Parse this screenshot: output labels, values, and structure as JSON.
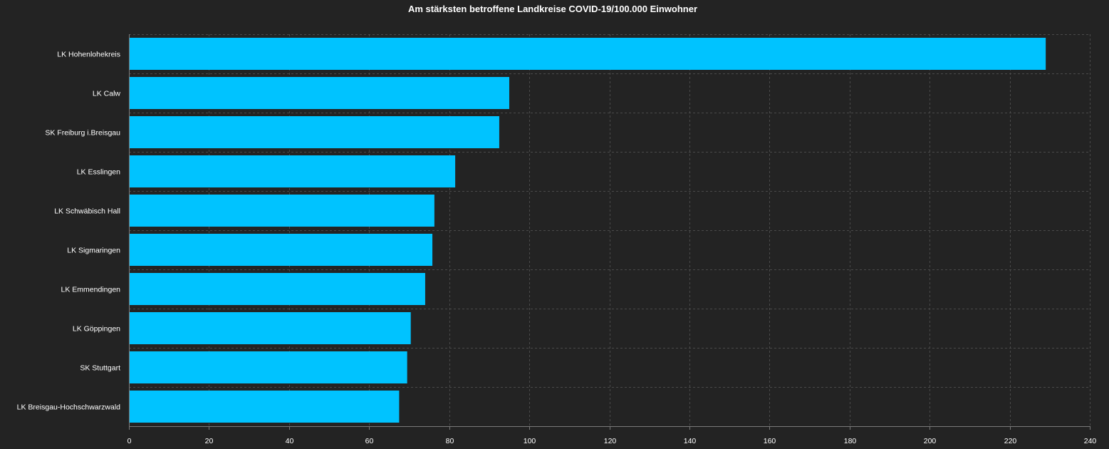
{
  "chart_data": {
    "type": "bar",
    "orientation": "horizontal",
    "title": "Am stärksten betroffene Landkreise COVID-19/100.000 Einwohner",
    "categories": [
      "LK Hohenlohekreis",
      "LK Calw",
      "SK Freiburg i.Breisgau",
      "LK Esslingen",
      "LK Schwäbisch Hall",
      "LK Sigmaringen",
      "LK Emmendingen",
      "LK Göppingen",
      "SK Stuttgart",
      "LK Breisgau-Hochschwarzwald"
    ],
    "values": [
      229,
      95,
      92.5,
      81.5,
      76.3,
      75.8,
      74,
      70.4,
      69.5,
      67.5
    ],
    "xlim": [
      0,
      240
    ],
    "xticks": [
      0,
      20,
      40,
      60,
      80,
      100,
      120,
      140,
      160,
      180,
      200,
      220,
      240
    ],
    "xlabel": "",
    "ylabel": "",
    "grid": true,
    "bar_color": "#00c3ff",
    "background_color": "#232323",
    "text_color": "#ffffff"
  }
}
